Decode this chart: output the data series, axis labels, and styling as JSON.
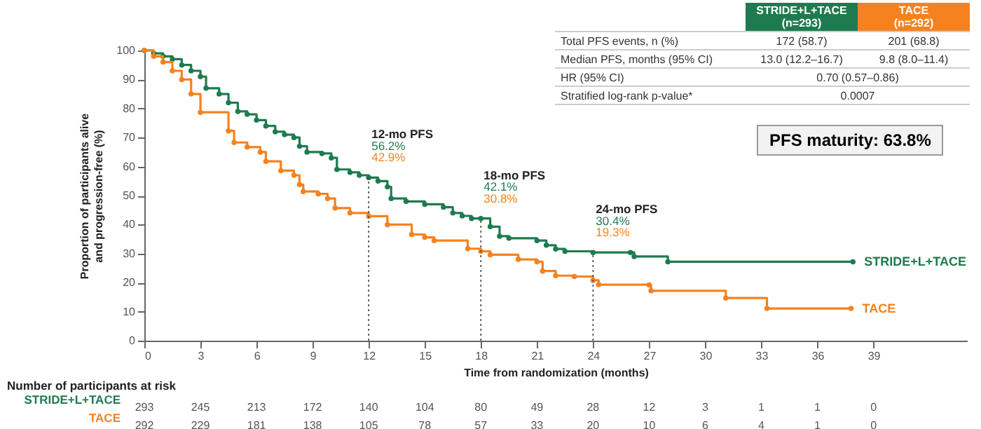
{
  "chart_data": {
    "type": "step",
    "xlabel": "Time from randomization (months)",
    "ylabel": "Proportion of participants alive\nand progression-free (%)",
    "xlim": [
      0,
      44
    ],
    "xticks": [
      0,
      3,
      6,
      9,
      12,
      15,
      18,
      21,
      24,
      27,
      30,
      33,
      36,
      39
    ],
    "ylim": [
      0,
      100
    ],
    "yticks": [
      0,
      10,
      20,
      30,
      40,
      50,
      60,
      70,
      80,
      90,
      100
    ],
    "grid": false,
    "legend": false,
    "marker": "circle",
    "line_style": "solid",
    "series": [
      {
        "name": "STRIDE+L+TACE",
        "color": "#1e7b4f",
        "x": [
          0,
          0.5,
          1,
          1.5,
          2,
          2.5,
          3,
          3.3,
          4,
          4.5,
          5,
          5.5,
          6,
          6.5,
          7,
          7.5,
          8,
          8.3,
          8.7,
          9.5,
          10,
          10.3,
          11,
          11.5,
          12,
          12.5,
          13,
          13.2,
          14,
          15,
          16,
          16.5,
          17,
          17.5,
          18,
          18.5,
          19,
          19.5,
          21,
          21.5,
          22,
          22.5,
          24,
          26,
          26.2,
          28,
          37.9
        ],
        "values": [
          100,
          99,
          98,
          97,
          95,
          93,
          91,
          87,
          85,
          82,
          79,
          78,
          76,
          74,
          72,
          71,
          70,
          67,
          65,
          64.5,
          63,
          59,
          58,
          57,
          56.2,
          55,
          53,
          49,
          48,
          47,
          46,
          44,
          43,
          42.1,
          42.1,
          39.3,
          36,
          35.3,
          34.5,
          32.9,
          31.6,
          30.8,
          30.4,
          30.4,
          29,
          27.2,
          27.2
        ]
      },
      {
        "name": "TACE",
        "color": "#f5821f",
        "x": [
          0,
          0.5,
          1,
          1.5,
          2,
          2.5,
          3,
          4.5,
          4.8,
          5.5,
          6.2,
          6.5,
          7.3,
          8,
          8.3,
          8.5,
          9.3,
          9.8,
          10.2,
          11,
          12,
          13,
          14.3,
          15,
          15.5,
          17.3,
          18,
          18.5,
          20,
          21,
          21.3,
          22,
          23,
          24,
          24.3,
          27,
          27.1,
          31.1,
          33.3,
          37.8
        ],
        "values": [
          100,
          98,
          96,
          93,
          90,
          85,
          78.7,
          72.3,
          68.3,
          66.7,
          65,
          61.8,
          58.6,
          57,
          53.8,
          51.4,
          50.6,
          49,
          45.7,
          44,
          42.9,
          40,
          36.6,
          35.6,
          34.5,
          31.7,
          30.8,
          29.6,
          28,
          27.2,
          24,
          22.4,
          22.1,
          20.8,
          19.3,
          19.2,
          17.2,
          14.7,
          11.1,
          11.1
        ]
      }
    ],
    "ref_lines": [
      {
        "axis": "x",
        "value": 12,
        "line_style": "dotted"
      },
      {
        "axis": "x",
        "value": 18,
        "line_style": "dotted"
      },
      {
        "axis": "x",
        "value": 24,
        "line_style": "dotted"
      }
    ],
    "annotations": [
      "12-mo PFS",
      "56.2%",
      "42.9%",
      "18-mo PFS",
      "42.1%",
      "30.8%",
      "24-mo PFS",
      "30.4%",
      "19.3%",
      "STRIDE+L+TACE\n(n=293)",
      "TACE\n(n=292)",
      "Total PFS events, n (%)",
      "172 (58.7)",
      "201 (68.8)",
      "Median PFS, months (95% CI)",
      "13.0 (12.2–16.7)",
      "9.8 (8.0–11.4)",
      "HR (95% CI)",
      "0.70 (0.57–0.86)",
      "Stratified log-rank p-value*",
      "0.0007",
      "PFS maturity: 63.8%",
      "Number of participants at risk",
      "293",
      "245",
      "213",
      "172",
      "140",
      "104",
      "80",
      "49",
      "28",
      "12",
      "3",
      "1",
      "1",
      "0",
      "292",
      "229",
      "181",
      "138",
      "105",
      "78",
      "57",
      "33",
      "20",
      "10",
      "6",
      "4",
      "1",
      "0"
    ]
  }
}
